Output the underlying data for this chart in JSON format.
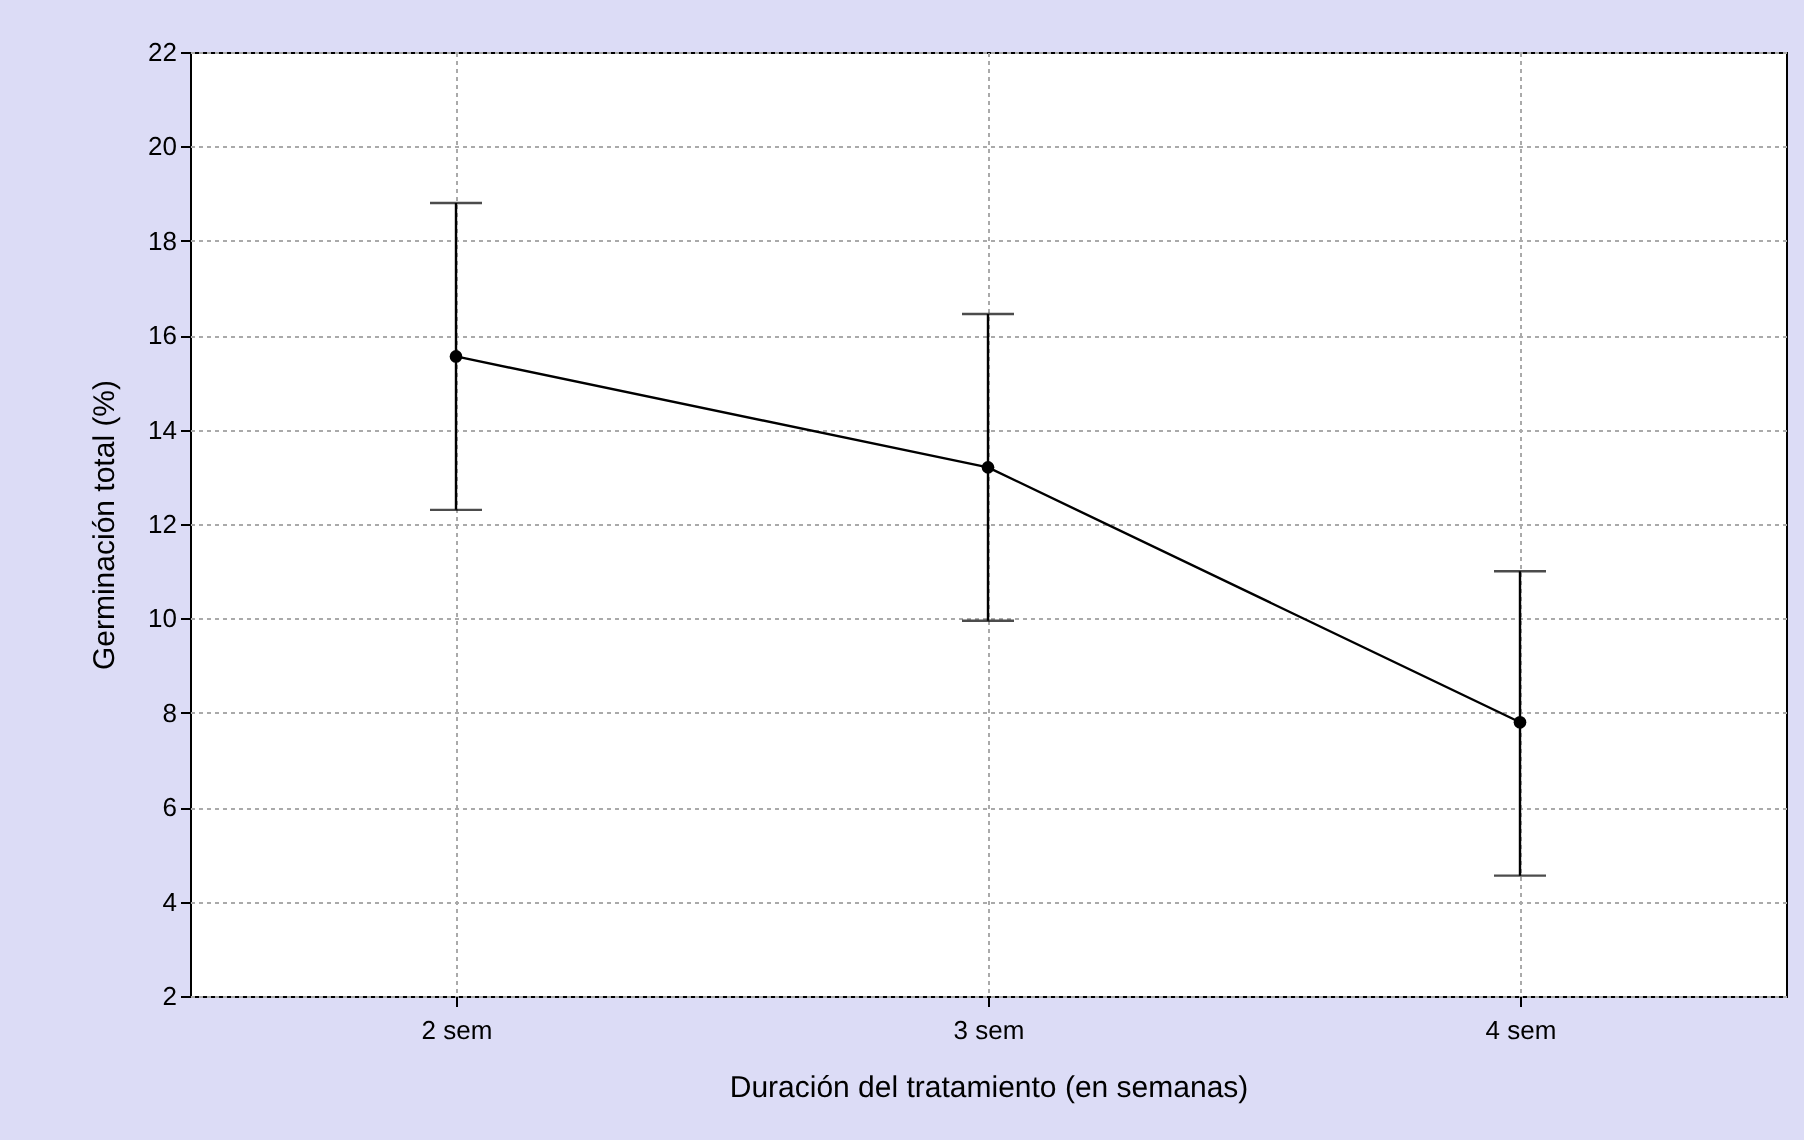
{
  "chart_data": {
    "type": "line",
    "xlabel": "Duración del tratamiento (en semanas)",
    "ylabel": "Germinación total (%)",
    "categories": [
      "2 sem",
      "3 sem",
      "4 sem"
    ],
    "series": [
      {
        "color": "#000000",
        "values": [
          15.55,
          13.2,
          7.8
        ],
        "errors": [
          [
            12.3,
            18.8
          ],
          [
            9.95,
            16.45
          ],
          [
            4.55,
            11.0
          ]
        ]
      }
    ],
    "ylim": [
      2,
      22
    ],
    "yticks": [
      2,
      4,
      6,
      8,
      10,
      12,
      14,
      16,
      18,
      20,
      22
    ],
    "grid": true,
    "marker": "circle",
    "line_style": "solid"
  }
}
